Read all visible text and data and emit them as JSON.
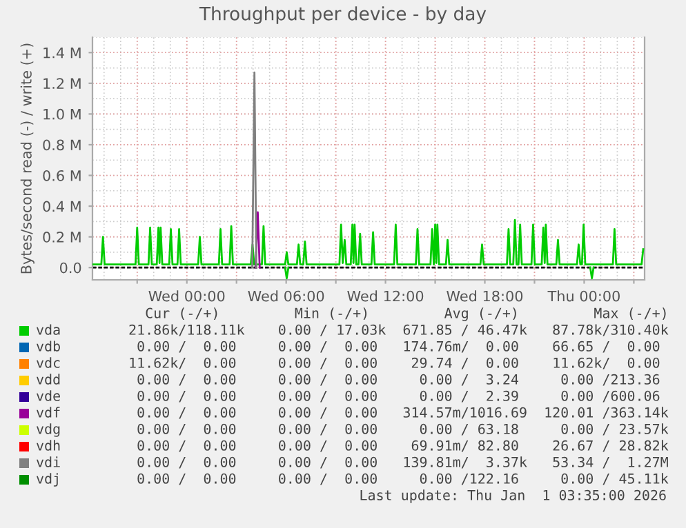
{
  "chart_data": {
    "type": "line",
    "title": "Throughput per device - by day",
    "ylabel": "Bytes/second read (-) / write (+)",
    "xlim": [
      "2025-12-30T18:18",
      "2026-01-01T03:39"
    ],
    "ylim": [
      -0.08,
      1.5
    ],
    "xticks": [
      {
        "value": "2025-12-30T21:00",
        "label": null
      },
      {
        "value": "2025-12-31T00:00",
        "label": "Wed 00:00"
      },
      {
        "value": "2025-12-31T03:00",
        "label": null
      },
      {
        "value": "2025-12-31T06:00",
        "label": "Wed 06:00"
      },
      {
        "value": "2025-12-31T09:00",
        "label": null
      },
      {
        "value": "2025-12-31T12:00",
        "label": "Wed 12:00"
      },
      {
        "value": "2025-12-31T15:00",
        "label": null
      },
      {
        "value": "2025-12-31T18:00",
        "label": "Wed 18:00"
      },
      {
        "value": "2025-12-31T21:00",
        "label": null
      },
      {
        "value": "2026-01-01T00:00",
        "label": "Thu 00:00"
      },
      {
        "value": "2026-01-01T03:00",
        "label": null
      }
    ],
    "yticks": [
      {
        "value": 0,
        "label": "0.0"
      },
      {
        "value": 0.2,
        "label": "0.2 M"
      },
      {
        "value": 0.4,
        "label": "0.4 M"
      },
      {
        "value": 0.6,
        "label": "0.6 M"
      },
      {
        "value": 0.8,
        "label": "0.8 M"
      },
      {
        "value": 1.0,
        "label": "1.0 M"
      },
      {
        "value": 1.2,
        "label": "1.2 M"
      },
      {
        "value": 1.4,
        "label": "1.4 M"
      }
    ],
    "grid": true,
    "legend": "bottom left",
    "marker": "none",
    "line_style": "solid",
    "ref_lines": [
      {
        "axis": "y",
        "value": 0,
        "color": "#000000"
      }
    ],
    "series": [
      {
        "name": "vda",
        "color": "#00cc00",
        "x": [
          "2025-12-30T18:18",
          "2025-12-30T18:50",
          "2025-12-30T18:56",
          "2025-12-30T19:02",
          "2025-12-30T20:54",
          "2025-12-30T21:00",
          "2025-12-30T21:06",
          "2025-12-30T21:41",
          "2025-12-30T21:47",
          "2025-12-30T21:53",
          "2025-12-30T22:11",
          "2025-12-30T22:17",
          "2025-12-30T22:21",
          "2025-12-30T22:25",
          "2025-12-30T22:31",
          "2025-12-30T22:56",
          "2025-12-30T23:02",
          "2025-12-30T23:08",
          "2025-12-30T23:26",
          "2025-12-30T23:32",
          "2025-12-30T23:38",
          "2025-12-31T00:41",
          "2025-12-31T00:47",
          "2025-12-31T00:53",
          "2025-12-31T01:56",
          "2025-12-31T02:02",
          "2025-12-31T02:08",
          "2025-12-31T02:35",
          "2025-12-31T02:41",
          "2025-12-31T02:47",
          "2025-12-31T03:52",
          "2025-12-31T03:58",
          "2025-12-31T04:04",
          "2025-12-31T04:32",
          "2025-12-31T04:38",
          "2025-12-31T04:44",
          "2025-12-31T05:56",
          "2025-12-31T06:02",
          "2025-12-31T06:08",
          "2025-12-31T06:39",
          "2025-12-31T06:45",
          "2025-12-31T06:51",
          "2025-12-31T07:02",
          "2025-12-31T07:08",
          "2025-12-31T07:14",
          "2025-12-31T09:13",
          "2025-12-31T09:19",
          "2025-12-31T09:25",
          "2025-12-31T09:32",
          "2025-12-31T09:38",
          "2025-12-31T09:54",
          "2025-12-31T10:00",
          "2025-12-31T10:04",
          "2025-12-31T10:08",
          "2025-12-31T10:14",
          "2025-12-31T10:22",
          "2025-12-31T10:28",
          "2025-12-31T10:34",
          "2025-12-31T11:09",
          "2025-12-31T11:15",
          "2025-12-31T11:21",
          "2025-12-31T12:31",
          "2025-12-31T12:37",
          "2025-12-31T12:43",
          "2025-12-31T13:50",
          "2025-12-31T13:56",
          "2025-12-31T14:02",
          "2025-12-31T14:43",
          "2025-12-31T14:49",
          "2025-12-31T14:55",
          "2025-12-31T15:00",
          "2025-12-31T15:04",
          "2025-12-31T15:08",
          "2025-12-31T15:14",
          "2025-12-31T15:39",
          "2025-12-31T15:45",
          "2025-12-31T15:51",
          "2025-12-31T17:44",
          "2025-12-31T17:50",
          "2025-12-31T17:56",
          "2025-12-31T19:20",
          "2025-12-31T19:26",
          "2025-12-31T19:32",
          "2025-12-31T19:43",
          "2025-12-31T19:49",
          "2025-12-31T19:55",
          "2025-12-31T20:02",
          "2025-12-31T20:08",
          "2025-12-31T20:14",
          "2025-12-31T20:49",
          "2025-12-31T20:55",
          "2025-12-31T21:01",
          "2025-12-31T21:26",
          "2025-12-31T21:32",
          "2025-12-31T21:37",
          "2025-12-31T21:41",
          "2025-12-31T21:47",
          "2025-12-31T22:19",
          "2025-12-31T22:25",
          "2025-12-31T22:31",
          "2025-12-31T23:34",
          "2025-12-31T23:40",
          "2025-12-31T23:46",
          "2025-12-31T23:52",
          "2025-12-31T23:58",
          "2026-01-01T00:04",
          "2026-01-01T01:44",
          "2026-01-01T01:50",
          "2026-01-01T01:56",
          "2026-01-01T03:28",
          "2026-01-01T03:34"
        ],
        "values": [
          0.02,
          0.02,
          0.2,
          0.02,
          0.02,
          0.26,
          0.02,
          0.02,
          0.26,
          0.02,
          0.02,
          0.26,
          0.03,
          0.26,
          0.02,
          0.02,
          0.25,
          0.02,
          0.02,
          0.25,
          0.02,
          0.02,
          0.2,
          0.02,
          0.02,
          0.25,
          0.02,
          0.02,
          0.27,
          0.02,
          0.02,
          0.15,
          0.02,
          0.02,
          0.27,
          0.02,
          0.02,
          0.1,
          0.02,
          0.02,
          0.15,
          0.02,
          0.02,
          0.17,
          0.02,
          0.02,
          0.28,
          0.03,
          0.18,
          0.02,
          0.02,
          0.28,
          0.03,
          0.28,
          0.02,
          0.02,
          0.22,
          0.02,
          0.02,
          0.23,
          0.02,
          0.02,
          0.28,
          0.02,
          0.02,
          0.25,
          0.02,
          0.02,
          0.25,
          0.02,
          0.28,
          0.03,
          0.28,
          0.02,
          0.02,
          0.18,
          0.02,
          0.02,
          0.15,
          0.02,
          0.02,
          0.25,
          0.02,
          0.02,
          0.31,
          0.02,
          0.02,
          0.28,
          0.02,
          0.02,
          0.28,
          0.02,
          0.02,
          0.26,
          0.03,
          0.28,
          0.02,
          0.02,
          0.18,
          0.02,
          0.02,
          0.15,
          0.02,
          0.02,
          0.28,
          0.02,
          0.02,
          0.25,
          0.02,
          0.02,
          0.12
        ]
      },
      {
        "color": "#00cc00",
        "x": [
          "2025-12-31T05:56",
          "2025-12-31T06:02",
          "2025-12-31T06:08",
          "2025-12-31T15:00",
          "2026-01-01T00:22",
          "2026-01-01T00:28",
          "2026-01-01T00:34"
        ],
        "values": [
          0,
          -0.07,
          0,
          null,
          0,
          -0.07,
          0
        ]
      },
      {
        "name": "vdb",
        "color": "#0066b3"
      },
      {
        "name": "vdc",
        "color": "#ff8000"
      },
      {
        "name": "vdd",
        "color": "#ffcc00"
      },
      {
        "name": "vde",
        "color": "#330099"
      },
      {
        "name": "vdf",
        "color": "#990099",
        "x": [
          "2025-12-31T04:09",
          "2025-12-31T04:17",
          "2025-12-31T04:24"
        ],
        "values": [
          0,
          0.36,
          0
        ]
      },
      {
        "name": "vdg",
        "color": "#ccff00"
      },
      {
        "name": "vdh",
        "color": "#ff0000"
      },
      {
        "name": "vdi",
        "color": "#808080",
        "x": [
          "2025-12-31T03:57",
          "2025-12-31T04:05",
          "2025-12-31T04:12"
        ],
        "values": [
          0,
          1.27,
          0
        ]
      },
      {
        "name": "vdj",
        "color": "#008f00"
      }
    ],
    "annotations": [
      "   Cur (-/+)         Min (-/+)         Avg (-/+)         Max (-/+)",
      " 21.86k/118.11k    0.00 / 17.03k  671.85 / 46.47k   87.78k/310.40k",
      "  0.00 /  0.00     0.00 /  0.00   174.76m/  0.00    66.65 /  0.00",
      " 11.62k/  0.00     0.00 /  0.00    29.74 /  0.00    11.62k/  0.00",
      "  0.00 /  0.00     0.00 /  0.00     0.00 /  3.24     0.00 /213.36",
      "  0.00 /  0.00     0.00 /  0.00     0.00 /  2.39     0.00 /600.06",
      "  0.00 /  0.00     0.00 /  0.00   314.57m/1016.69  120.01 /363.14k",
      "  0.00 /  0.00     0.00 /  0.00     0.00 / 63.18     0.00 / 23.57k",
      "  0.00 /  0.00     0.00 /  0.00    69.91m/ 82.80    26.67 / 28.82k",
      "  0.00 /  0.00     0.00 /  0.00   139.81m/  3.37k   53.34 /  1.27M",
      "  0.00 /  0.00     0.00 /  0.00     0.00 /122.16     0.00 / 45.11k",
      "Last update: Thu Jan  1 03:35:00 2026"
    ]
  }
}
